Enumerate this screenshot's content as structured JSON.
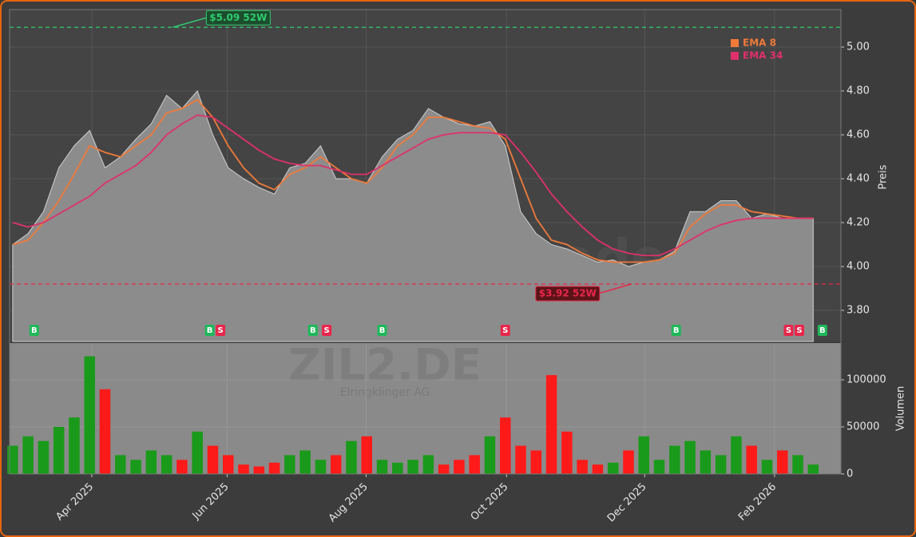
{
  "chart_data": [
    {
      "type": "line",
      "ylabel": "Preis",
      "watermark": "forexsignale.trade",
      "x": [
        0,
        1,
        2,
        3,
        4,
        5,
        6,
        7,
        8,
        9,
        10,
        11,
        12,
        13,
        14,
        15,
        16,
        17,
        18,
        19,
        20,
        21,
        22,
        23,
        24,
        25,
        26,
        27,
        28,
        29,
        30,
        31,
        32,
        33,
        34,
        35,
        36,
        37,
        38,
        39,
        40,
        41,
        42,
        43,
        44,
        45,
        46,
        47,
        48,
        49,
        50,
        51,
        52
      ],
      "xlim": [
        -0.2,
        53.8
      ],
      "ylim": [
        3.658,
        5.171
      ],
      "yticks": [
        {
          "value": 3.8,
          "label": "3.80"
        },
        {
          "value": 4.0,
          "label": "4.00"
        },
        {
          "value": 4.2,
          "label": "4.20"
        },
        {
          "value": 4.4,
          "label": "4.40"
        },
        {
          "value": 4.6,
          "label": "4.60"
        },
        {
          "value": 4.8,
          "label": "4.80"
        },
        {
          "value": 5.0,
          "label": "5.00"
        }
      ],
      "grid": true,
      "series": [
        {
          "color": "#8c8c8c",
          "values": [
            4.1,
            4.15,
            4.25,
            4.45,
            4.55,
            4.62,
            4.45,
            4.5,
            4.58,
            4.65,
            4.78,
            4.72,
            4.8,
            4.6,
            4.45,
            4.4,
            4.36,
            4.33,
            4.45,
            4.47,
            4.55,
            4.4,
            4.4,
            4.38,
            4.5,
            4.58,
            4.62,
            4.72,
            4.68,
            4.65,
            4.64,
            4.66,
            4.55,
            4.25,
            4.15,
            4.1,
            4.08,
            4.05,
            4.02,
            4.03,
            4.0,
            4.02,
            4.03,
            4.07,
            4.25,
            4.25,
            4.3,
            4.3,
            4.22,
            4.24,
            4.22,
            4.22,
            4.22
          ]
        },
        {
          "name": "EMA 8",
          "color": "#f07a3a",
          "values": [
            4.1,
            4.12,
            4.2,
            4.3,
            4.42,
            4.55,
            4.52,
            4.5,
            4.55,
            4.6,
            4.7,
            4.72,
            4.76,
            4.68,
            4.55,
            4.45,
            4.38,
            4.35,
            4.42,
            4.45,
            4.5,
            4.45,
            4.4,
            4.38,
            4.45,
            4.55,
            4.6,
            4.68,
            4.68,
            4.66,
            4.64,
            4.63,
            4.58,
            4.4,
            4.22,
            4.12,
            4.1,
            4.06,
            4.03,
            4.02,
            4.02,
            4.02,
            4.03,
            4.06,
            4.18,
            4.24,
            4.28,
            4.28,
            4.25,
            4.24,
            4.23,
            4.22,
            4.22
          ]
        },
        {
          "name": "EMA 34",
          "color": "#e0306a",
          "values": [
            4.2,
            4.18,
            4.2,
            4.24,
            4.28,
            4.32,
            4.38,
            4.42,
            4.46,
            4.52,
            4.6,
            4.65,
            4.69,
            4.68,
            4.63,
            4.58,
            4.53,
            4.49,
            4.47,
            4.46,
            4.46,
            4.44,
            4.42,
            4.42,
            4.46,
            4.5,
            4.54,
            4.58,
            4.6,
            4.61,
            4.61,
            4.61,
            4.6,
            4.52,
            4.43,
            4.33,
            4.25,
            4.18,
            4.12,
            4.08,
            4.06,
            4.05,
            4.05,
            4.08,
            4.12,
            4.16,
            4.19,
            4.21,
            4.22,
            4.22,
            4.22,
            4.22,
            4.22
          ]
        }
      ],
      "high": {
        "value": 5.09,
        "label": "$5.09 52W",
        "x": 10.4,
        "color": "#2ecc71"
      },
      "low": {
        "value": 3.92,
        "label": "$3.92 52W",
        "x": 40.2,
        "color": "#e8264b"
      },
      "signal_colors": {
        "B": "#1fb85a",
        "S": "#e8264b"
      },
      "signals": [
        {
          "x": 1.4,
          "label": "B"
        },
        {
          "x": 12.8,
          "label": "B"
        },
        {
          "x": 13.5,
          "label": "S"
        },
        {
          "x": 19.5,
          "label": "B"
        },
        {
          "x": 20.4,
          "label": "S"
        },
        {
          "x": 24.0,
          "label": "B"
        },
        {
          "x": 32.0,
          "label": "S"
        },
        {
          "x": 43.1,
          "label": "B"
        },
        {
          "x": 50.4,
          "label": "S"
        },
        {
          "x": 51.1,
          "label": "S"
        },
        {
          "x": 52.6,
          "label": "B"
        }
      ]
    },
    {
      "type": "bar",
      "ylabel": "Volumen",
      "title": "ZIL2.DE",
      "subtitle": "Elringklinger AG",
      "up_color": "#1a9a1a",
      "down_color": "#ff1a1a",
      "x": [
        0,
        1,
        2,
        3,
        4,
        5,
        6,
        7,
        8,
        9,
        10,
        11,
        12,
        13,
        14,
        15,
        16,
        17,
        18,
        19,
        20,
        21,
        22,
        23,
        24,
        25,
        26,
        27,
        28,
        29,
        30,
        31,
        32,
        33,
        34,
        35,
        36,
        37,
        38,
        39,
        40,
        41,
        42,
        43,
        44,
        45,
        46,
        47,
        48,
        49,
        50,
        51,
        52
      ],
      "values": [
        30000,
        40000,
        35000,
        50000,
        60000,
        125000,
        90000,
        20000,
        15000,
        25000,
        20000,
        15000,
        45000,
        30000,
        20000,
        10000,
        8000,
        12000,
        20000,
        25000,
        15000,
        20000,
        35000,
        40000,
        15000,
        12000,
        15000,
        20000,
        10000,
        15000,
        20000,
        40000,
        60000,
        30000,
        25000,
        105000,
        45000,
        15000,
        10000,
        12000,
        25000,
        40000,
        15000,
        30000,
        35000,
        25000,
        20000,
        40000,
        30000,
        15000,
        25000,
        20000,
        10000
      ],
      "xlim": [
        -0.2,
        53.8
      ],
      "ylim": [
        0,
        139000
      ],
      "yticks": [
        0,
        50000,
        100000
      ],
      "xticks": [
        {
          "value": 5.14,
          "label": "Apr 2025"
        },
        {
          "value": 13.93,
          "label": "Jun 2025"
        },
        {
          "value": 22.96,
          "label": "Aug 2025"
        },
        {
          "value": 32.08,
          "label": "Oct 2025"
        },
        {
          "value": 41.05,
          "label": "Dec 2025"
        },
        {
          "value": 49.49,
          "label": "Feb 2026"
        }
      ]
    }
  ]
}
